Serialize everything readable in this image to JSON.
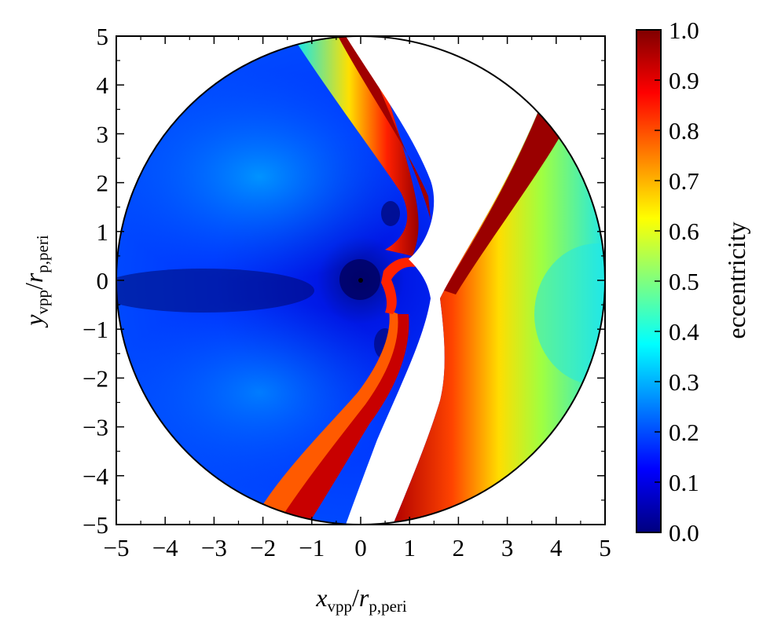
{
  "chart_data": {
    "type": "heatmap",
    "title": "",
    "xlabel": {
      "var": "x",
      "sub1": "vpp",
      "mid": "/",
      "var2": "r",
      "sub2": "p,peri"
    },
    "ylabel": {
      "var": "y",
      "sub1": "vpp",
      "mid": "/",
      "var2": "r",
      "sub2": "p,peri"
    },
    "colorbar_label": "eccentricity",
    "xlim": [
      -5,
      5
    ],
    "ylim": [
      -5,
      5
    ],
    "clim": [
      0.0,
      1.0
    ],
    "x_ticks": [
      "−5",
      "−4",
      "−3",
      "−2",
      "−1",
      "0",
      "1",
      "2",
      "3",
      "4",
      "5"
    ],
    "y_ticks": [
      "5",
      "4",
      "3",
      "2",
      "1",
      "0",
      "−1",
      "−2",
      "−3",
      "−4",
      "−5"
    ],
    "colorbar_ticks": [
      "1.0",
      "0.9",
      "0.8",
      "0.7",
      "0.6",
      "0.5",
      "0.4",
      "0.3",
      "0.2",
      "0.1",
      "0.0"
    ],
    "x_tick_values": [
      -5,
      -4,
      -3,
      -2,
      -1,
      0,
      1,
      2,
      3,
      4,
      5
    ],
    "y_tick_values": [
      5,
      4,
      3,
      2,
      1,
      0,
      -1,
      -2,
      -3,
      -4,
      -5
    ],
    "colorbar_tick_values": [
      1.0,
      0.9,
      0.8,
      0.7,
      0.6,
      0.5,
      0.4,
      0.3,
      0.2,
      0.1,
      0.0
    ],
    "domain": {
      "shape": "circle",
      "center": [
        0,
        0
      ],
      "radius": 5
    },
    "central_point": {
      "x": 0,
      "y": 0
    },
    "colormap": "jet",
    "colormap_stops": [
      "#00007f",
      "#0000ff",
      "#007fff",
      "#00ffff",
      "#7fff7f",
      "#ffff00",
      "#ff7f00",
      "#ff0000",
      "#7f0000"
    ],
    "grid": false,
    "legend": "colorbar-right"
  }
}
